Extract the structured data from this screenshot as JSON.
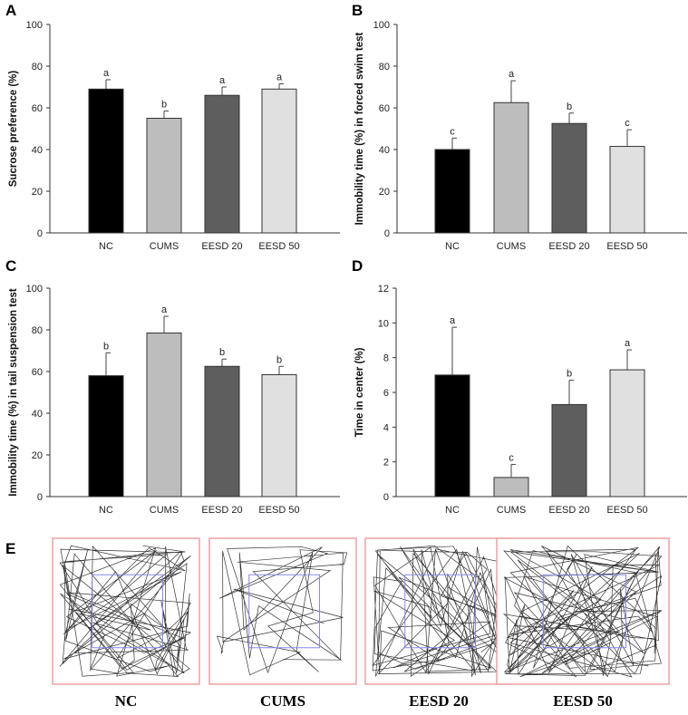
{
  "chart_data": [
    {
      "panel": "A",
      "type": "bar",
      "categories": [
        "NC",
        "CUMS",
        "EESD 20",
        "EESD 50"
      ],
      "values": [
        69,
        55,
        66,
        69
      ],
      "errors": [
        4.5,
        3.5,
        4,
        2.5
      ],
      "letters": [
        "a",
        "b",
        "a",
        "a"
      ],
      "ylabel": "Sucrose preference (%)",
      "ylim": [
        0,
        100
      ],
      "yticks": [
        0,
        20,
        40,
        60,
        80,
        100
      ]
    },
    {
      "panel": "B",
      "type": "bar",
      "categories": [
        "NC",
        "CUMS",
        "EESD 20",
        "EESD 50"
      ],
      "values": [
        40,
        62.5,
        52.5,
        41.5
      ],
      "errors": [
        5.5,
        10.5,
        5,
        8
      ],
      "letters": [
        "c",
        "a",
        "b",
        "c"
      ],
      "ylabel": "Immobility time (%) in forced swim test",
      "ylim": [
        0,
        100
      ],
      "yticks": [
        0,
        20,
        40,
        60,
        80,
        100
      ]
    },
    {
      "panel": "C",
      "type": "bar",
      "categories": [
        "NC",
        "CUMS",
        "EESD 20",
        "EESD 50"
      ],
      "values": [
        58,
        78.5,
        62.5,
        58.5
      ],
      "errors": [
        11,
        8,
        3.5,
        4
      ],
      "letters": [
        "b",
        "a",
        "b",
        "b"
      ],
      "ylabel": "Immobility time (%) in tail suspension test",
      "ylim": [
        0,
        100
      ],
      "yticks": [
        0,
        20,
        40,
        60,
        80,
        100
      ]
    },
    {
      "panel": "D",
      "type": "bar",
      "categories": [
        "NC",
        "CUMS",
        "EESD 20",
        "EESD 50"
      ],
      "values": [
        7.0,
        1.1,
        5.3,
        7.3
      ],
      "errors": [
        2.75,
        0.75,
        1.4,
        1.15
      ],
      "letters": [
        "a",
        "c",
        "b",
        "a"
      ],
      "ylabel": "Time in center (%)",
      "ylim": [
        0,
        12
      ],
      "yticks": [
        0,
        2,
        4,
        6,
        8,
        10,
        12
      ]
    }
  ],
  "bar_colors": [
    "#000000",
    "#bdbdbd",
    "#5e5e5e",
    "#e0e0e0"
  ],
  "panel_e": {
    "label": "E",
    "groups": [
      "NC",
      "CUMS",
      "EESD 20",
      "EESD 50"
    ],
    "outer_color": "#f0a0a0",
    "center_color": "#8888ee"
  }
}
